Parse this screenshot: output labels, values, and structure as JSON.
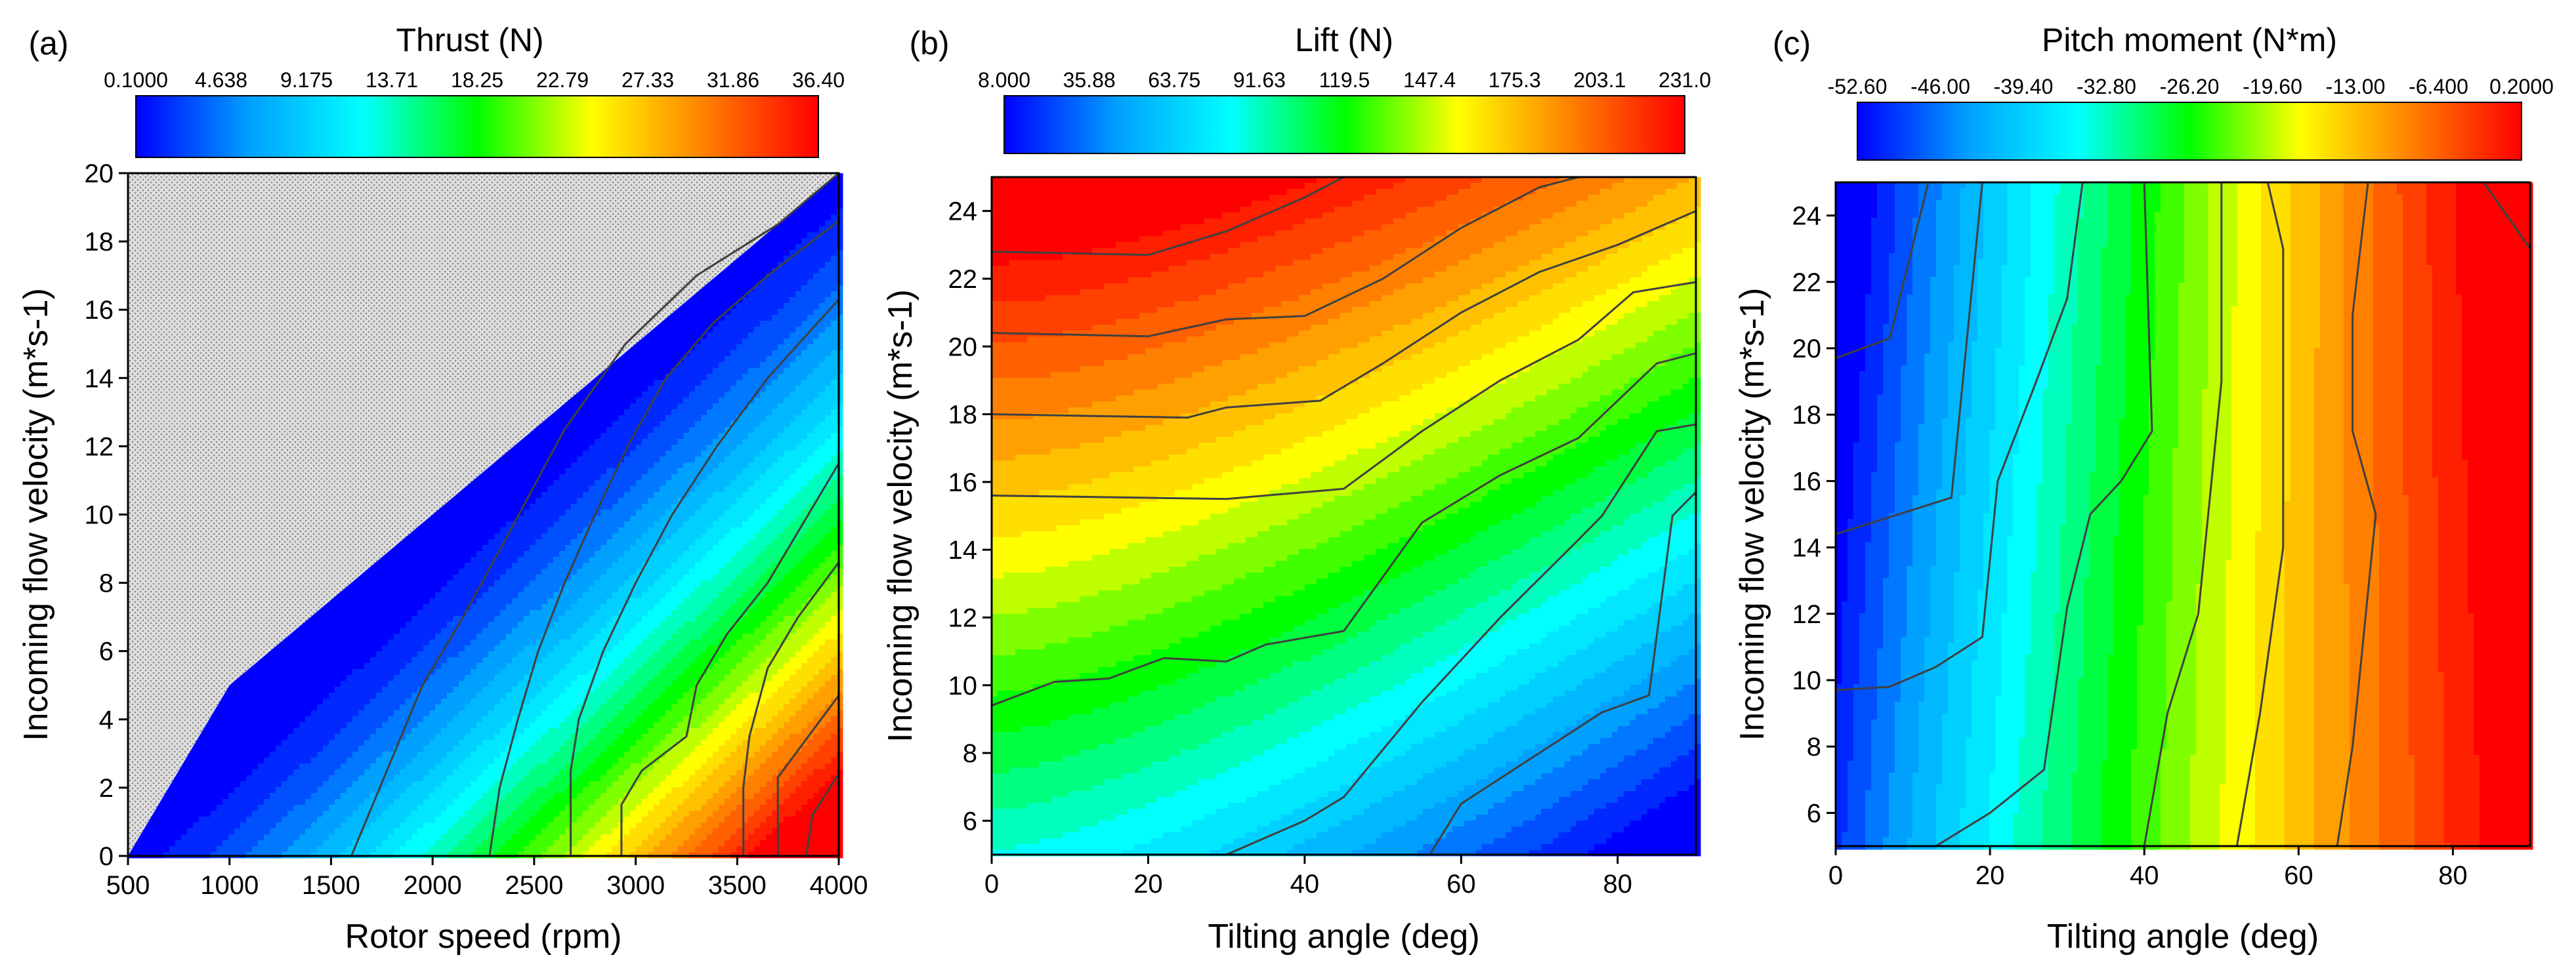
{
  "figure": {
    "colorscale": [
      "#0000ff",
      "#00a0ff",
      "#00ffff",
      "#00ff00",
      "#ffff00",
      "#ff8000",
      "#ff0000"
    ],
    "contour_line_color": "#404040",
    "invalid_region_fill": "#d9d9d9"
  },
  "chart_data": [
    {
      "type": "heatmap",
      "panel_label": "(a)",
      "colorbar": {
        "title": "Thrust (N)",
        "ticks": [
          "0.1000",
          "4.638",
          "9.175",
          "13.71",
          "18.25",
          "22.79",
          "27.33",
          "31.86",
          "36.40"
        ],
        "range": [
          0.1,
          36.4
        ]
      },
      "xlabel": "Rotor speed (rpm)",
      "ylabel": "Incoming flow velocity (m*s-1)",
      "xlim": [
        500,
        4000
      ],
      "ylim": [
        0,
        20
      ],
      "xticks": [
        500,
        1000,
        1500,
        2000,
        2500,
        3000,
        3500,
        4000
      ],
      "yticks": [
        0,
        2,
        4,
        6,
        8,
        10,
        12,
        14,
        16,
        18,
        20
      ],
      "invalid_region": "upper-left triangle (no data)",
      "contours": [
        [
          [
            1600,
            0
          ],
          [
            1740,
            2
          ],
          [
            1880,
            4
          ],
          [
            1950,
            5
          ],
          [
            2150,
            7
          ],
          [
            2380,
            9.5
          ],
          [
            2650,
            12.5
          ],
          [
            2950,
            15
          ],
          [
            3300,
            17
          ],
          [
            3700,
            18.5
          ],
          [
            4000,
            20
          ]
        ],
        [
          [
            2280,
            0
          ],
          [
            2330,
            2
          ],
          [
            2420,
            4
          ],
          [
            2520,
            6
          ],
          [
            2650,
            8
          ],
          [
            2800,
            10
          ],
          [
            2960,
            12
          ],
          [
            3150,
            14
          ],
          [
            3380,
            15.6
          ],
          [
            3650,
            17
          ],
          [
            4000,
            18.6
          ]
        ],
        [
          [
            2680,
            0
          ],
          [
            2680,
            2.5
          ],
          [
            2720,
            4
          ],
          [
            2840,
            6
          ],
          [
            3000,
            8
          ],
          [
            3180,
            10
          ],
          [
            3400,
            12
          ],
          [
            3650,
            14
          ],
          [
            4000,
            16.3
          ]
        ],
        [
          [
            2930,
            0
          ],
          [
            2930,
            1.5
          ],
          [
            3030,
            2.5
          ],
          [
            3250,
            3.5
          ],
          [
            3300,
            5
          ],
          [
            3450,
            6.5
          ],
          [
            3650,
            8
          ],
          [
            3850,
            10
          ],
          [
            4000,
            11.5
          ]
        ],
        [
          [
            3530,
            0
          ],
          [
            3530,
            2
          ],
          [
            3560,
            3.5
          ],
          [
            3650,
            5.5
          ],
          [
            3800,
            7
          ],
          [
            4000,
            8.6
          ]
        ],
        [
          [
            3700,
            0
          ],
          [
            3700,
            2.3
          ],
          [
            3850,
            3.5
          ],
          [
            4000,
            4.7
          ]
        ],
        [
          [
            3840,
            0
          ],
          [
            3870,
            1.2
          ],
          [
            4000,
            2.4
          ]
        ]
      ]
    },
    {
      "type": "heatmap",
      "panel_label": "(b)",
      "colorbar": {
        "title": "Lift (N)",
        "ticks": [
          "8.000",
          "35.88",
          "63.75",
          "91.63",
          "119.5",
          "147.4",
          "175.3",
          "203.1",
          "231.0"
        ],
        "range": [
          8,
          231
        ]
      },
      "xlabel": "Tilting angle (deg)",
      "ylabel": "Incoming flow velocity (m*s-1)",
      "xlim": [
        0,
        90
      ],
      "ylim": [
        5,
        25
      ],
      "xticks": [
        0,
        20,
        40,
        60,
        80
      ],
      "yticks": [
        6,
        8,
        10,
        12,
        14,
        16,
        18,
        20,
        22,
        24
      ],
      "field": {
        "grid": "irregular",
        "description": "Lift increases with incoming flow velocity and decreases with tilting angle"
      },
      "contours": [
        [
          [
            0,
            22.8
          ],
          [
            20,
            22.7
          ],
          [
            30,
            23.4
          ],
          [
            40,
            24.4
          ],
          [
            45,
            25
          ]
        ],
        [
          [
            0,
            20.4
          ],
          [
            20,
            20.3
          ],
          [
            30,
            20.8
          ],
          [
            40,
            20.9
          ],
          [
            50,
            22
          ],
          [
            60,
            23.5
          ],
          [
            70,
            24.7
          ],
          [
            75,
            25
          ]
        ],
        [
          [
            0,
            18
          ],
          [
            25,
            17.9
          ],
          [
            30,
            18.2
          ],
          [
            42,
            18.4
          ],
          [
            50,
            19.5
          ],
          [
            60,
            21
          ],
          [
            70,
            22.2
          ],
          [
            80,
            23
          ],
          [
            90,
            24
          ]
        ],
        [
          [
            0,
            15.6
          ],
          [
            30,
            15.5
          ],
          [
            45,
            15.8
          ],
          [
            55,
            17.5
          ],
          [
            65,
            19
          ],
          [
            75,
            20.2
          ],
          [
            82,
            21.6
          ],
          [
            90,
            21.9
          ]
        ],
        [
          [
            0,
            9.4
          ],
          [
            8,
            10.1
          ],
          [
            15,
            10.2
          ],
          [
            22,
            10.8
          ],
          [
            30,
            10.7
          ],
          [
            35,
            11.2
          ],
          [
            45,
            11.6
          ],
          [
            55,
            14.8
          ],
          [
            65,
            16.2
          ],
          [
            75,
            17.3
          ],
          [
            85,
            19.5
          ],
          [
            90,
            19.8
          ]
        ],
        [
          [
            30,
            5
          ],
          [
            40,
            6
          ],
          [
            45,
            6.7
          ],
          [
            55,
            9.5
          ],
          [
            65,
            12
          ],
          [
            75,
            14.3
          ],
          [
            78,
            15
          ],
          [
            85,
            17.5
          ],
          [
            90,
            17.7
          ]
        ],
        [
          [
            56,
            5
          ],
          [
            60,
            6.5
          ],
          [
            70,
            8
          ],
          [
            78,
            9.2
          ],
          [
            84,
            9.7
          ],
          [
            87,
            15
          ],
          [
            90,
            15.7
          ]
        ]
      ]
    },
    {
      "type": "heatmap",
      "panel_label": "(c)",
      "colorbar": {
        "title": "Pitch moment (N*m)",
        "ticks": [
          "-52.60",
          "-46.00",
          "-39.40",
          "-32.80",
          "-26.20",
          "-19.60",
          "-13.00",
          "-6.400",
          "0.2000"
        ],
        "range": [
          -52.6,
          0.2
        ]
      },
      "xlabel": "Tilting angle (deg)",
      "ylabel": "Incoming flow velocity (m*s-1)",
      "xlim": [
        0,
        90
      ],
      "ylim": [
        5,
        25
      ],
      "xticks": [
        0,
        20,
        40,
        60,
        80
      ],
      "yticks": [
        6,
        8,
        10,
        12,
        14,
        16,
        18,
        20,
        22,
        24
      ],
      "field": {
        "grid": "irregular",
        "description": "Pitch moment increases with tilting angle and varies weakly with velocity"
      },
      "contours": [
        [
          [
            0,
            19.7
          ],
          [
            7,
            20.3
          ],
          [
            12,
            25
          ]
        ],
        [
          [
            0,
            14.4
          ],
          [
            15,
            15.5
          ],
          [
            19,
            25
          ]
        ],
        [
          [
            0,
            9.7
          ],
          [
            7,
            9.8
          ],
          [
            13,
            10.4
          ],
          [
            19,
            11.3
          ],
          [
            21,
            16
          ],
          [
            26,
            19
          ],
          [
            30,
            21.5
          ],
          [
            32,
            25
          ]
        ],
        [
          [
            13,
            5
          ],
          [
            20,
            6
          ],
          [
            27,
            7.3
          ],
          [
            30,
            12.2
          ],
          [
            33,
            15
          ],
          [
            37,
            16
          ],
          [
            41,
            17.5
          ],
          [
            40,
            25
          ]
        ],
        [
          [
            40,
            5
          ],
          [
            43,
            9
          ],
          [
            47,
            12
          ],
          [
            50,
            19
          ],
          [
            50,
            25
          ]
        ],
        [
          [
            52,
            5
          ],
          [
            55,
            9
          ],
          [
            58,
            14
          ],
          [
            58,
            23
          ],
          [
            56,
            25
          ]
        ],
        [
          [
            65,
            5
          ],
          [
            67,
            8
          ],
          [
            70,
            15
          ],
          [
            67,
            17.5
          ],
          [
            67,
            21
          ],
          [
            69,
            25
          ]
        ],
        [
          [
            84,
            25
          ],
          [
            90,
            23
          ]
        ]
      ]
    }
  ]
}
